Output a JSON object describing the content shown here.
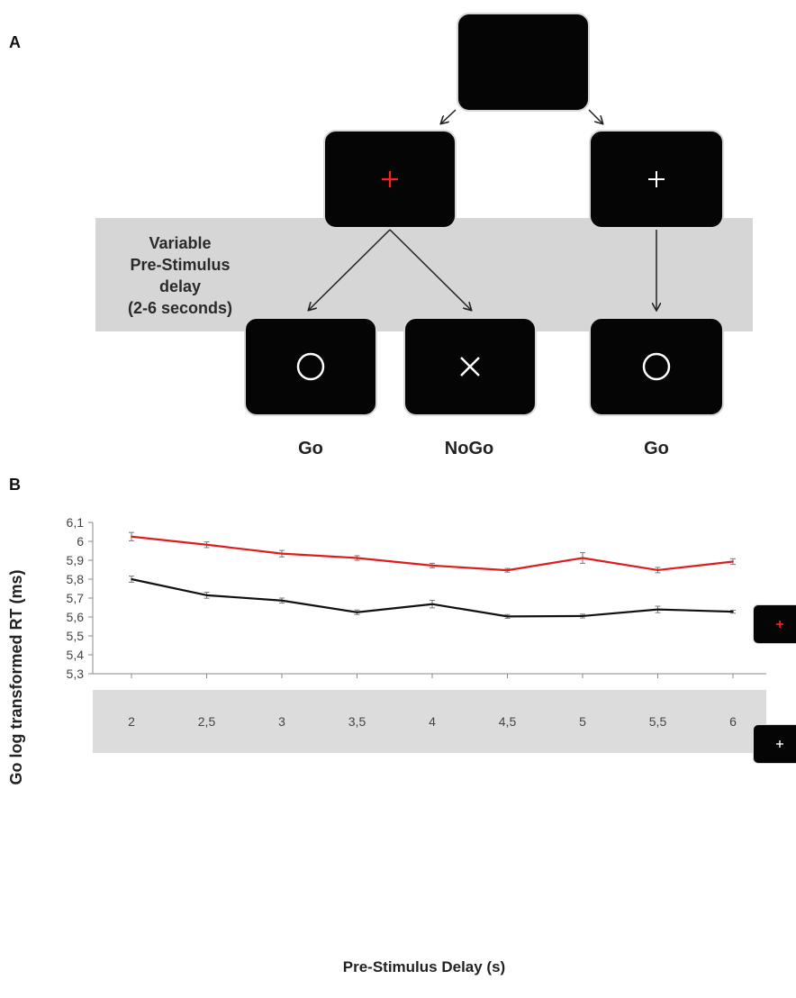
{
  "panel_a": {
    "label": "A",
    "delay_text": [
      "Variable",
      "Pre-Stimulus",
      "delay",
      "(2-6 seconds)"
    ],
    "labels": [
      "Go",
      "NoGo",
      "Go"
    ]
  },
  "panel_b": {
    "label": "B",
    "legend": [
      {
        "icon": "red-fixation-cross",
        "color": "#ff2020"
      },
      {
        "icon": "white-fixation-cross",
        "color": "#ffffff"
      }
    ]
  },
  "chart_data": {
    "type": "line",
    "title": "",
    "xlabel": "Pre-Stimulus Delay (s)",
    "ylabel": "Go log transformed RT (ms)",
    "x": [
      "2",
      "2,5",
      "3",
      "3,5",
      "4",
      "4,5",
      "5",
      "5,5",
      "6"
    ],
    "ylim": [
      5.3,
      6.1
    ],
    "yticks": [
      "5,3",
      "5,4",
      "5,5",
      "5,6",
      "5,7",
      "5,8",
      "5,9",
      "6",
      "6,1"
    ],
    "grid": false,
    "legend_position": "right",
    "series": [
      {
        "color": "#e01c1c",
        "values": [
          6.025,
          5.982,
          5.935,
          5.912,
          5.872,
          5.847,
          5.912,
          5.848,
          5.893
        ],
        "errors": [
          0.022,
          0.015,
          0.017,
          0.012,
          0.012,
          0.01,
          0.028,
          0.014,
          0.015
        ]
      },
      {
        "color": "#111111",
        "values": [
          5.8,
          5.715,
          5.687,
          5.625,
          5.668,
          5.603,
          5.605,
          5.64,
          5.628
        ],
        "errors": [
          0.016,
          0.016,
          0.013,
          0.012,
          0.02,
          0.01,
          0.01,
          0.017,
          0.008
        ]
      }
    ]
  }
}
